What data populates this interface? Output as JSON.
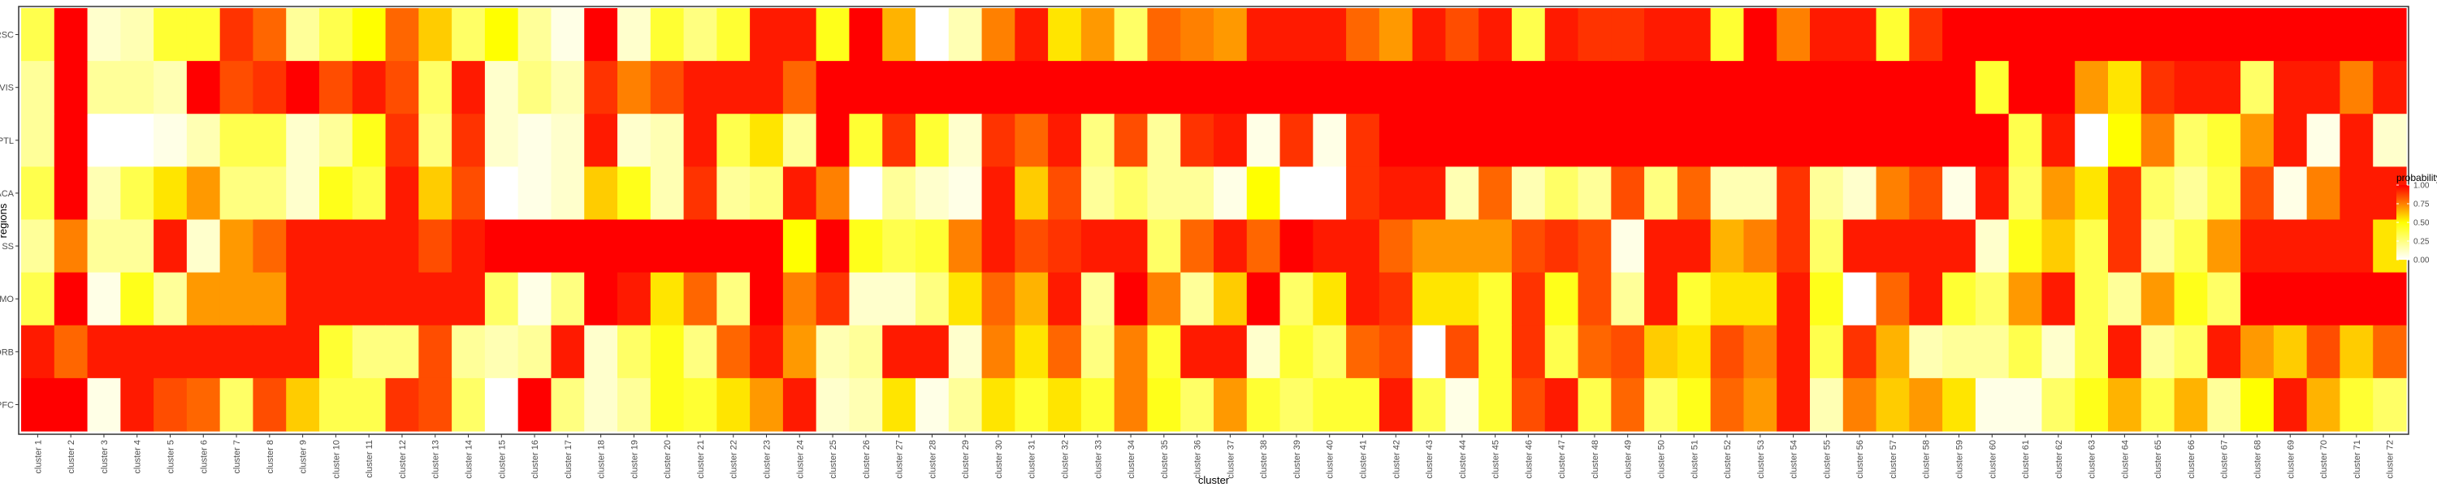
{
  "chart_data": {
    "type": "heatmap",
    "xlabel": "cluster",
    "ylabel": "regions",
    "x": [
      "cluster 1",
      "cluster 2",
      "cluster 3",
      "cluster 4",
      "cluster 5",
      "cluster 6",
      "cluster 7",
      "cluster 8",
      "cluster 9",
      "cluster 10",
      "cluster 11",
      "cluster 12",
      "cluster 13",
      "cluster 14",
      "cluster 15",
      "cluster 16",
      "cluster 17",
      "cluster 18",
      "cluster 19",
      "cluster 20",
      "cluster 21",
      "cluster 22",
      "cluster 23",
      "cluster 24",
      "cluster 25",
      "cluster 26",
      "cluster 27",
      "cluster 28",
      "cluster 29",
      "cluster 30",
      "cluster 31",
      "cluster 32",
      "cluster 33",
      "cluster 34",
      "cluster 35",
      "cluster 36",
      "cluster 37",
      "cluster 38",
      "cluster 39",
      "cluster 40",
      "cluster 41",
      "cluster 42",
      "cluster 43",
      "cluster 44",
      "cluster 45",
      "cluster 46",
      "cluster 47",
      "cluster 48",
      "cluster 49",
      "cluster 50",
      "cluster 51",
      "cluster 52",
      "cluster 53",
      "cluster 54",
      "cluster 55",
      "cluster 56",
      "cluster 57",
      "cluster 58",
      "cluster 59",
      "cluster 60",
      "cluster 61",
      "cluster 62",
      "cluster 63",
      "cluster 64",
      "cluster 65",
      "cluster 66",
      "cluster 67",
      "cluster 68",
      "cluster 69",
      "cluster 70",
      "cluster 71",
      "cluster 72"
    ],
    "y": [
      "RSC",
      "VIS",
      "PTL",
      "ACA",
      "SS",
      "MO",
      "ORB",
      "PFC"
    ],
    "values": [
      [
        0.35,
        1.0,
        0.1,
        0.15,
        0.4,
        0.4,
        0.9,
        0.8,
        0.2,
        0.35,
        0.5,
        0.8,
        0.6,
        0.3,
        0.5,
        0.2,
        0.05,
        1.0,
        0.1,
        0.4,
        0.25,
        0.4,
        0.95,
        0.95,
        0.45,
        1.0,
        0.65,
        0.0,
        0.15,
        0.75,
        0.95,
        0.55,
        0.7,
        0.3,
        0.8,
        0.75,
        0.7,
        0.95,
        0.95,
        0.95,
        0.8,
        0.7,
        0.95,
        0.85,
        0.95,
        0.35,
        0.95,
        0.9,
        0.9,
        0.95,
        0.95,
        0.4,
        1.0,
        0.75,
        0.95,
        0.95,
        0.4,
        0.9,
        1.0,
        1.0,
        1.0,
        1.0,
        1.0,
        1.0,
        1.0,
        1.0,
        1.0,
        1.0,
        1.0,
        1.0,
        1.0,
        1.0
      ],
      [
        0.2,
        1.0,
        0.2,
        0.2,
        0.15,
        1.0,
        0.85,
        0.9,
        1.0,
        0.85,
        0.95,
        0.85,
        0.3,
        0.95,
        0.1,
        0.25,
        0.15,
        0.9,
        0.75,
        0.85,
        0.95,
        0.95,
        0.95,
        0.8,
        1.0,
        1.0,
        1.0,
        1.0,
        1.0,
        1.0,
        1.0,
        1.0,
        1.0,
        1.0,
        1.0,
        1.0,
        1.0,
        1.0,
        1.0,
        1.0,
        1.0,
        1.0,
        1.0,
        1.0,
        1.0,
        1.0,
        1.0,
        1.0,
        1.0,
        1.0,
        1.0,
        1.0,
        1.0,
        1.0,
        1.0,
        1.0,
        1.0,
        1.0,
        1.0,
        0.4,
        1.0,
        1.0,
        0.7,
        0.55,
        0.9,
        0.95,
        0.95,
        0.3,
        0.95,
        0.95,
        0.75,
        0.95
      ],
      [
        0.2,
        1.0,
        0.0,
        0.0,
        0.05,
        0.15,
        0.35,
        0.35,
        0.1,
        0.2,
        0.45,
        0.9,
        0.25,
        0.9,
        0.1,
        0.05,
        0.1,
        0.95,
        0.1,
        0.15,
        0.95,
        0.35,
        0.55,
        0.2,
        1.0,
        0.4,
        0.9,
        0.4,
        0.1,
        0.9,
        0.8,
        0.95,
        0.25,
        0.85,
        0.2,
        0.9,
        0.95,
        0.05,
        0.9,
        0.05,
        0.9,
        1.0,
        1.0,
        1.0,
        1.0,
        1.0,
        1.0,
        1.0,
        1.0,
        1.0,
        1.0,
        1.0,
        1.0,
        1.0,
        1.0,
        1.0,
        1.0,
        1.0,
        1.0,
        1.0,
        0.35,
        0.95,
        0.0,
        0.5,
        0.75,
        0.3,
        0.4,
        0.7,
        0.95,
        0.05,
        0.95,
        0.1
      ],
      [
        0.35,
        1.0,
        0.15,
        0.35,
        0.55,
        0.7,
        0.25,
        0.25,
        0.1,
        0.45,
        0.35,
        0.95,
        0.6,
        0.85,
        0.0,
        0.05,
        0.1,
        0.6,
        0.45,
        0.15,
        0.9,
        0.2,
        0.25,
        0.95,
        0.75,
        0.0,
        0.2,
        0.1,
        0.05,
        0.95,
        0.6,
        0.85,
        0.2,
        0.3,
        0.2,
        0.2,
        0.05,
        0.5,
        0.0,
        0.0,
        0.9,
        0.95,
        0.95,
        0.15,
        0.8,
        0.15,
        0.3,
        0.2,
        0.85,
        0.25,
        0.8,
        0.15,
        0.15,
        0.9,
        0.2,
        0.1,
        0.75,
        0.85,
        0.05,
        0.95,
        0.3,
        0.7,
        0.55,
        0.9,
        0.3,
        0.2,
        0.35,
        0.85,
        0.05,
        0.75,
        0.95,
        0.95
      ],
      [
        0.2,
        0.75,
        0.2,
        0.2,
        0.95,
        0.1,
        0.7,
        0.8,
        0.95,
        0.95,
        0.95,
        0.95,
        0.85,
        0.95,
        1.0,
        1.0,
        1.0,
        1.0,
        1.0,
        1.0,
        1.0,
        1.0,
        1.0,
        0.5,
        1.0,
        0.45,
        0.35,
        0.4,
        0.75,
        0.95,
        0.85,
        0.9,
        0.95,
        0.95,
        0.3,
        0.8,
        0.95,
        0.8,
        1.0,
        0.95,
        0.95,
        0.8,
        0.7,
        0.7,
        0.7,
        0.85,
        0.9,
        0.85,
        0.05,
        0.95,
        0.95,
        0.65,
        0.75,
        0.9,
        0.3,
        0.95,
        0.95,
        0.95,
        0.95,
        0.1,
        0.45,
        0.6,
        0.35,
        0.9,
        0.2,
        0.35,
        0.7,
        0.95,
        0.95,
        0.95,
        0.95,
        0.55
      ],
      [
        0.35,
        1.0,
        0.05,
        0.45,
        0.2,
        0.7,
        0.7,
        0.7,
        0.95,
        0.95,
        0.95,
        0.95,
        0.95,
        0.95,
        0.3,
        0.05,
        0.25,
        1.0,
        0.95,
        0.55,
        0.8,
        0.25,
        1.0,
        0.75,
        0.9,
        0.1,
        0.1,
        0.25,
        0.55,
        0.8,
        0.65,
        0.95,
        0.2,
        1.0,
        0.75,
        0.2,
        0.6,
        1.0,
        0.3,
        0.55,
        0.95,
        0.9,
        0.55,
        0.55,
        0.4,
        0.9,
        0.45,
        0.85,
        0.2,
        0.95,
        0.4,
        0.55,
        0.55,
        0.95,
        0.45,
        0.0,
        0.8,
        0.95,
        0.4,
        0.3,
        0.7,
        0.95,
        0.35,
        0.2,
        0.7,
        0.45,
        0.3,
        1.0,
        1.0,
        1.0,
        1.0,
        1.0
      ],
      [
        0.95,
        0.8,
        0.95,
        0.95,
        0.95,
        0.95,
        0.95,
        0.95,
        0.95,
        0.4,
        0.25,
        0.25,
        0.85,
        0.2,
        0.15,
        0.2,
        0.95,
        0.1,
        0.3,
        0.45,
        0.25,
        0.8,
        0.95,
        0.7,
        0.15,
        0.2,
        0.95,
        0.95,
        0.1,
        0.75,
        0.55,
        0.8,
        0.25,
        0.75,
        0.4,
        0.95,
        0.95,
        0.1,
        0.4,
        0.3,
        0.8,
        0.85,
        0.0,
        0.85,
        0.4,
        0.9,
        0.35,
        0.8,
        0.85,
        0.6,
        0.55,
        0.85,
        0.75,
        0.95,
        0.35,
        0.9,
        0.65,
        0.15,
        0.2,
        0.2,
        0.35,
        0.1,
        0.35,
        0.95,
        0.2,
        0.3,
        0.95,
        0.7,
        0.6,
        0.85,
        0.6,
        0.8
      ],
      [
        1.0,
        1.0,
        0.05,
        0.95,
        0.85,
        0.8,
        0.3,
        0.85,
        0.6,
        0.35,
        0.35,
        0.9,
        0.85,
        0.3,
        0.0,
        1.0,
        0.25,
        0.1,
        0.2,
        0.45,
        0.4,
        0.55,
        0.7,
        0.95,
        0.1,
        0.15,
        0.55,
        0.05,
        0.2,
        0.55,
        0.4,
        0.55,
        0.4,
        0.75,
        0.45,
        0.3,
        0.7,
        0.4,
        0.3,
        0.4,
        0.4,
        0.95,
        0.35,
        0.05,
        0.4,
        0.85,
        0.95,
        0.35,
        0.8,
        0.3,
        0.45,
        0.8,
        0.7,
        0.95,
        0.15,
        0.75,
        0.6,
        0.7,
        0.55,
        0.05,
        0.05,
        0.3,
        0.45,
        0.65,
        0.35,
        0.65,
        0.2,
        0.5,
        0.95,
        0.65,
        0.4,
        0.3
      ]
    ],
    "legend": {
      "title": "probability",
      "ticks": [
        "1.00",
        "0.75",
        "0.50",
        "0.25",
        "0.00"
      ],
      "tick_values": [
        1.0,
        0.75,
        0.5,
        0.25,
        0.0
      ],
      "position": "right"
    },
    "colors": {
      "low": "#ffffff",
      "mid": "#ffff00",
      "high": "#ff0000"
    },
    "grid": false
  }
}
